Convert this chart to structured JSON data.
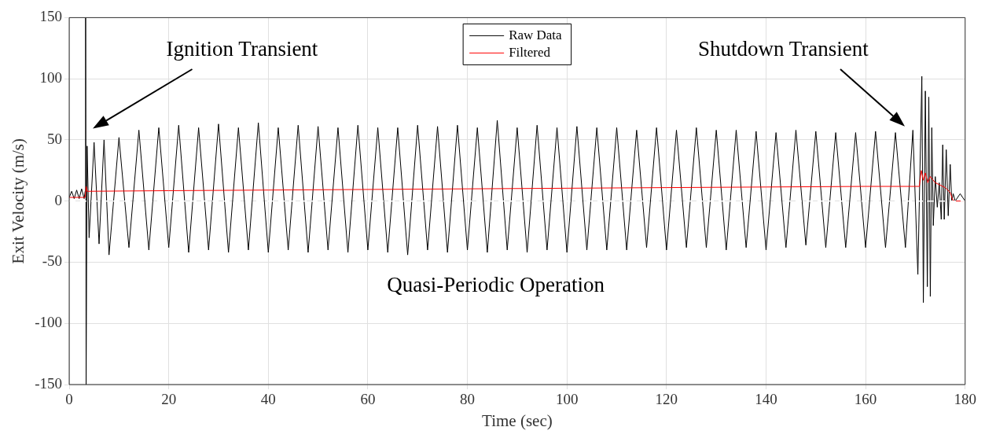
{
  "chart_data": {
    "type": "line",
    "xlabel": "Time (sec)",
    "ylabel": "Exit Velocity (m/s)",
    "xlim": [
      0,
      180
    ],
    "xticks": [
      0,
      20,
      40,
      60,
      80,
      100,
      120,
      140,
      160,
      180
    ],
    "ylim": [
      -150,
      150
    ],
    "yticks": [
      -150,
      -100,
      -50,
      0,
      50,
      100,
      150
    ],
    "grid": true,
    "legend": "top",
    "marker": "none",
    "line_style": "solid",
    "ref_lines": [
      {
        "axis": "y",
        "value": 0,
        "color": "#ffffff",
        "line_style": "dashed"
      }
    ],
    "annotations": [
      "Ignition Transient",
      "Shutdown Transient",
      "Quasi-Periodic Operation"
    ],
    "series": [
      {
        "name": "Raw Data",
        "color": "#000000",
        "x": [
          0,
          0.5,
          1,
          1.5,
          2,
          2.5,
          3,
          3.2,
          3.3,
          3.4,
          3.6,
          4,
          5,
          6,
          7,
          8,
          10,
          12,
          14,
          16,
          18,
          20,
          22,
          24,
          26,
          28,
          30,
          32,
          34,
          36,
          38,
          40,
          42,
          44,
          46,
          48,
          50,
          52,
          54,
          56,
          58,
          60,
          62,
          64,
          66,
          68,
          70,
          72,
          74,
          76,
          78,
          80,
          82,
          84,
          86,
          88,
          90,
          92,
          94,
          96,
          98,
          100,
          102,
          104,
          106,
          108,
          110,
          112,
          114,
          116,
          118,
          120,
          122,
          124,
          126,
          128,
          130,
          132,
          134,
          136,
          138,
          140,
          142,
          144,
          146,
          148,
          150,
          152,
          154,
          156,
          158,
          160,
          162,
          164,
          166,
          168,
          169.5,
          170.5,
          171.3,
          171.6,
          172,
          172.4,
          172.7,
          173,
          173.3,
          173.6,
          174,
          174.4,
          174.8,
          175.2,
          175.5,
          175.8,
          176.2,
          176.6,
          177,
          177.3,
          177.6,
          178,
          179,
          180
        ],
        "values": [
          3,
          8,
          2,
          9,
          2,
          10,
          2,
          8,
          150,
          -150,
          45,
          -30,
          48,
          -35,
          50,
          -44,
          52,
          -38,
          58,
          -40,
          60,
          -38,
          62,
          -42,
          60,
          -40,
          63,
          -42,
          60,
          -40,
          64,
          -42,
          60,
          -40,
          62,
          -42,
          61,
          -40,
          60,
          -42,
          62,
          -40,
          60,
          -42,
          60,
          -44,
          62,
          -40,
          61,
          -42,
          62,
          -40,
          60,
          -42,
          66,
          -40,
          60,
          -42,
          62,
          -40,
          60,
          -42,
          61,
          -40,
          60,
          -40,
          60,
          -40,
          58,
          -38,
          60,
          -40,
          58,
          -38,
          60,
          -38,
          58,
          -40,
          58,
          -38,
          57,
          -40,
          56,
          -38,
          58,
          -36,
          57,
          -38,
          56,
          -38,
          56,
          -38,
          57,
          -38,
          56,
          -38,
          58,
          -60,
          102,
          -83,
          90,
          -70,
          85,
          -78,
          60,
          -20,
          20,
          -5,
          15,
          -15,
          46,
          -15,
          42,
          -12,
          30,
          0,
          6,
          0,
          6,
          0
        ]
      },
      {
        "name": "Filtered",
        "color": "#ff0000",
        "x": [
          0,
          3.2,
          3.4,
          3.6,
          20,
          40,
          60,
          80,
          100,
          120,
          140,
          160,
          170.8,
          171.2,
          171.6,
          172,
          172.5,
          173,
          174,
          176,
          177,
          177.5,
          178,
          180
        ],
        "values": [
          3,
          3,
          12,
          8,
          8.5,
          9,
          9.5,
          10,
          10.5,
          11,
          11.5,
          12,
          12,
          25,
          17,
          23,
          15,
          20,
          15,
          11,
          7,
          1,
          0,
          0
        ]
      }
    ]
  }
}
